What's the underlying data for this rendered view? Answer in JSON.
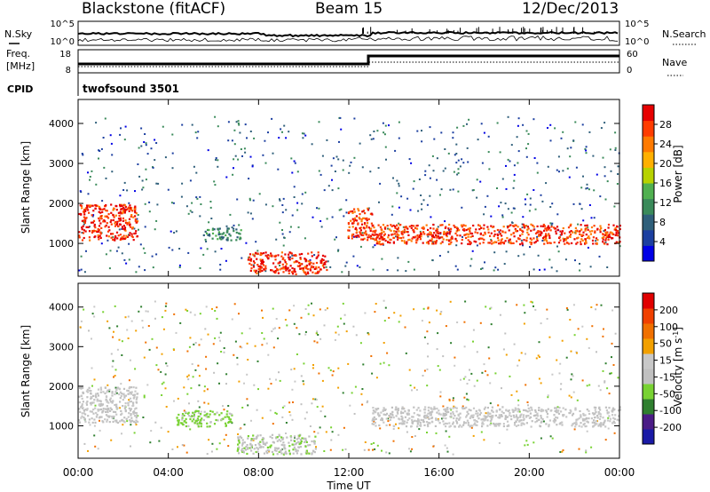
{
  "header": {
    "station": "Blackstone (fitACF)",
    "beam": "Beam 15",
    "date": "12/Dec/2013"
  },
  "summary": {
    "nsky_label": "N.Sky",
    "nsearch_label": "N.Search",
    "freq_label_line1": "Freq.",
    "freq_label_line2": "[MHz]",
    "nave_label": "Nave",
    "cpid_label": "CPID",
    "noise_ticks": [
      "10^5",
      "10^0"
    ],
    "noise_ticks_right": [
      "10^5",
      "10^0"
    ],
    "freq_ticks": [
      "18",
      "8"
    ],
    "nave_ticks": [
      "60",
      "0"
    ],
    "cpid_value": "twofsound 3501"
  },
  "colors": {
    "power_scale": [
      "#0000e6",
      "#1c3fa0",
      "#2f5f7a",
      "#3a8a5a",
      "#50b050",
      "#b7d200",
      "#ffb000",
      "#ff7a00",
      "#ff3c00",
      "#e60000"
    ],
    "velocity_scale": [
      "#1a1aa6",
      "#4b1c86",
      "#2f7f2f",
      "#78d232",
      "#c0c0c0",
      "#c8c8c8",
      "#f2a000",
      "#f07000",
      "#f04000",
      "#e00000"
    ]
  },
  "chart_data": [
    {
      "type": "heatmap",
      "title": "",
      "xlabel": "",
      "ylabel": "Slant Range [km]",
      "x_ticks": [
        "00:00",
        "04:00",
        "08:00",
        "12:00",
        "16:00",
        "20:00",
        "00:00"
      ],
      "y_ticks": [
        "1000",
        "2000",
        "3000",
        "4000"
      ],
      "xlim_hours": [
        0,
        24
      ],
      "ylim_km": [
        180,
        4600
      ],
      "colorbar": {
        "label": "Power [dB]",
        "ticks": [
          "28",
          "24",
          "20",
          "16",
          "12",
          "8",
          "4"
        ],
        "range": [
          0,
          30
        ]
      },
      "features": [
        {
          "t0": 0.0,
          "t1": 2.6,
          "r0": 1100,
          "r1": 2000,
          "value": 27
        },
        {
          "t0": 5.5,
          "t1": 7.2,
          "r0": 1100,
          "r1": 1400,
          "value": 10
        },
        {
          "t0": 7.5,
          "t1": 11.0,
          "r0": 250,
          "r1": 800,
          "value": 27
        },
        {
          "t0": 11.9,
          "t1": 13.0,
          "r0": 1100,
          "r1": 1900,
          "value": 26
        },
        {
          "t0": 13.0,
          "t1": 24.0,
          "r0": 1000,
          "r1": 1500,
          "value": 26
        }
      ]
    },
    {
      "type": "heatmap",
      "title": "",
      "xlabel": "Time UT",
      "ylabel": "Slant Range [km]",
      "x_ticks": [
        "00:00",
        "04:00",
        "08:00",
        "12:00",
        "16:00",
        "20:00",
        "00:00"
      ],
      "y_ticks": [
        "1000",
        "2000",
        "3000",
        "4000"
      ],
      "xlim_hours": [
        0,
        24
      ],
      "ylim_km": [
        180,
        4600
      ],
      "colorbar": {
        "label": "Velocity [m s^-1]",
        "ticks": [
          "200",
          "100",
          "50",
          "15",
          "-15",
          "-50",
          "-100",
          "-200"
        ],
        "range": [
          -250,
          250
        ]
      },
      "features": [
        {
          "t0": 0.0,
          "t1": 2.6,
          "r0": 1100,
          "r1": 2000,
          "value": -5
        },
        {
          "t0": 4.3,
          "t1": 6.8,
          "r0": 1000,
          "r1": 1400,
          "value": -60
        },
        {
          "t0": 7.0,
          "t1": 10.5,
          "r0": 300,
          "r1": 800,
          "value": -40
        },
        {
          "t0": 13.0,
          "t1": 24.0,
          "r0": 1000,
          "r1": 1500,
          "value": 0
        }
      ]
    }
  ]
}
